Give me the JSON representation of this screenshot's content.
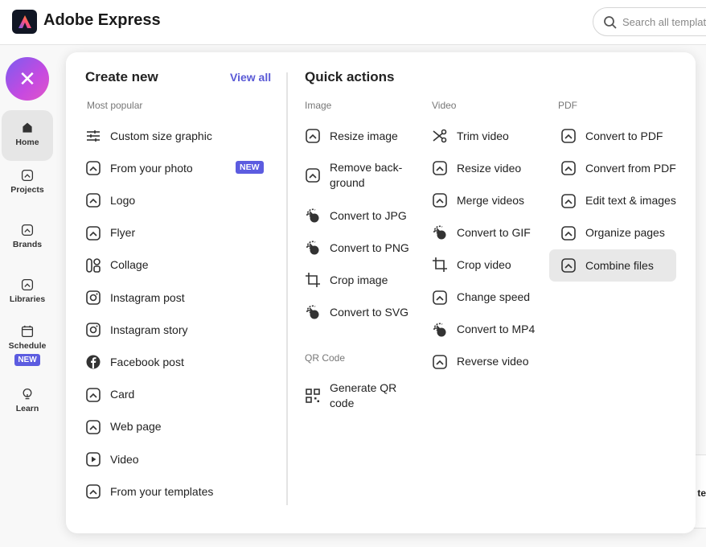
{
  "header": {
    "app_name": "Adobe Express",
    "search_placeholder": "Search all templates"
  },
  "sidebar": {
    "items": [
      {
        "label": "Home",
        "icon": "home-icon"
      },
      {
        "label": "Projects",
        "icon": "file-icon"
      },
      {
        "label": "Brands",
        "icon": "brand-icon"
      },
      {
        "label": "Libraries",
        "icon": "library-icon"
      },
      {
        "label": "Schedule",
        "icon": "calendar-icon",
        "badge": "NEW"
      },
      {
        "label": "Learn",
        "icon": "lightbulb-icon"
      }
    ],
    "close_icon": "close-icon"
  },
  "create_new": {
    "title": "Create new",
    "view_all": "View all",
    "section": "Most popular",
    "items": [
      {
        "label": "Custom size graphic",
        "icon": "sliders-icon"
      },
      {
        "label": "From your photo",
        "icon": "photo-plus-icon",
        "badge": "NEW"
      },
      {
        "label": "Logo",
        "icon": "logo-icon"
      },
      {
        "label": "Flyer",
        "icon": "flyer-icon"
      },
      {
        "label": "Collage",
        "icon": "collage-icon"
      },
      {
        "label": "Instagram post",
        "icon": "instagram-icon"
      },
      {
        "label": "Instagram story",
        "icon": "instagram-icon"
      },
      {
        "label": "Facebook post",
        "icon": "facebook-icon"
      },
      {
        "label": "Card",
        "icon": "card-icon"
      },
      {
        "label": "Web page",
        "icon": "web-page-icon"
      },
      {
        "label": "Video",
        "icon": "video-icon"
      },
      {
        "label": "From your templates",
        "icon": "templates-icon"
      }
    ]
  },
  "quick_actions": {
    "title": "Quick actions",
    "image": {
      "label": "Image",
      "items": [
        {
          "label": "Resize image",
          "icon": "resize-icon"
        },
        {
          "label": "Remove back-\nground",
          "icon": "remove-bg-icon"
        },
        {
          "label": "Convert to JPG",
          "icon": "convert-icon"
        },
        {
          "label": "Convert to PNG",
          "icon": "convert-icon"
        },
        {
          "label": "Crop image",
          "icon": "crop-icon"
        },
        {
          "label": "Convert to SVG",
          "icon": "convert-icon"
        }
      ]
    },
    "qr": {
      "label": "QR Code",
      "items": [
        {
          "label": "Generate QR\ncode",
          "icon": "qr-code-icon"
        }
      ]
    },
    "video": {
      "label": "Video",
      "items": [
        {
          "label": "Trim video",
          "icon": "scissors-icon"
        },
        {
          "label": "Resize video",
          "icon": "resize-icon"
        },
        {
          "label": "Merge videos",
          "icon": "merge-icon"
        },
        {
          "label": "Convert to GIF",
          "icon": "convert-icon"
        },
        {
          "label": "Crop video",
          "icon": "crop-icon"
        },
        {
          "label": "Change speed",
          "icon": "speed-icon"
        },
        {
          "label": "Convert to MP4",
          "icon": "convert-icon"
        },
        {
          "label": "Reverse video",
          "icon": "reverse-icon"
        }
      ]
    },
    "pdf": {
      "label": "PDF",
      "items": [
        {
          "label": "Convert to PDF",
          "icon": "pdf-sparkle-icon"
        },
        {
          "label": "Convert from PDF",
          "icon": "pdf-icon"
        },
        {
          "label": "Edit text & images",
          "icon": "edit-layout-icon"
        },
        {
          "label": "Organize pages",
          "icon": "organize-icon"
        },
        {
          "label": "Combine files",
          "icon": "combine-icon",
          "selected": true
        }
      ]
    }
  },
  "background": {
    "partial_text": "t te"
  }
}
